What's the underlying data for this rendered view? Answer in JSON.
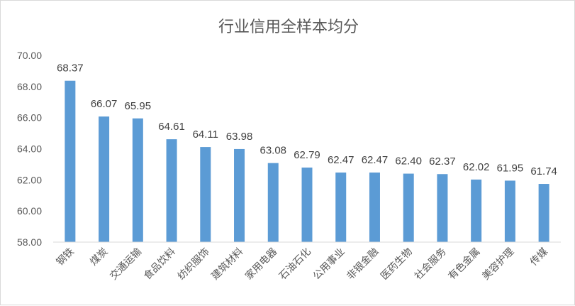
{
  "chart_data": {
    "type": "bar",
    "title": "行业信用全样本均分",
    "categories": [
      "钢铁",
      "煤炭",
      "交通运输",
      "食品饮料",
      "纺织服饰",
      "建筑材料",
      "家用电器",
      "石油石化",
      "公用事业",
      "非银金融",
      "医药生物",
      "社会服务",
      "有色金属",
      "美容护理",
      "传媒"
    ],
    "values": [
      68.37,
      66.07,
      65.95,
      64.61,
      64.11,
      63.98,
      63.08,
      62.79,
      62.47,
      62.47,
      62.4,
      62.37,
      62.02,
      61.95,
      61.74
    ],
    "value_labels": [
      "68.37",
      "66.07",
      "65.95",
      "64.61",
      "64.11",
      "63.98",
      "63.08",
      "62.79",
      "62.47",
      "62.47",
      "62.40",
      "62.37",
      "62.02",
      "61.95",
      "61.74"
    ],
    "y_ticks": [
      "58.00",
      "60.00",
      "62.00",
      "64.00",
      "66.00",
      "68.00",
      "70.00"
    ],
    "ylim": [
      58,
      70
    ],
    "grid": false,
    "legend": "none",
    "bar_color": "#5b9bd5",
    "axis_color": "#d9d9d9"
  }
}
